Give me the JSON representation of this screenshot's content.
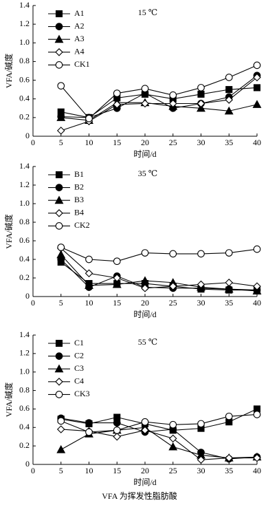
{
  "chart_data": [
    {
      "type": "line",
      "annotation": "15 ℃",
      "x_label": "时间/d",
      "y_label": "VFA/碱度",
      "x": [
        5,
        10,
        15,
        20,
        25,
        30,
        35,
        40
      ],
      "xlim": [
        0,
        40
      ],
      "xticks": [
        0,
        5,
        10,
        15,
        20,
        25,
        30,
        35,
        40
      ],
      "ylim": [
        0,
        1.4
      ],
      "yticks": [
        0,
        0.2,
        0.4,
        0.6,
        0.8,
        {
          "value": 1,
          "label": "1.0"
        },
        1.2,
        1.4
      ],
      "legend": "upper left",
      "series": [
        {
          "name": "A1",
          "color": "#000000",
          "marker": "square",
          "filled": true,
          "values": [
            0.26,
            0.2,
            0.41,
            0.45,
            0.4,
            0.45,
            0.5,
            0.52
          ]
        },
        {
          "name": "A2",
          "color": "#000000",
          "marker": "circle",
          "filled": true,
          "values": [
            0.21,
            0.2,
            0.3,
            0.46,
            0.3,
            0.35,
            0.42,
            0.65
          ]
        },
        {
          "name": "A3",
          "color": "#000000",
          "marker": "triangle",
          "filled": true,
          "values": [
            0.2,
            0.17,
            0.36,
            0.36,
            0.32,
            0.3,
            0.27,
            0.34
          ]
        },
        {
          "name": "A4",
          "color": "#000000",
          "marker": "diamond",
          "filled": false,
          "values": [
            0.06,
            0.16,
            0.34,
            0.35,
            0.35,
            0.35,
            0.39,
            0.63
          ]
        },
        {
          "name": "CK1",
          "color": "#000000",
          "marker": "circle",
          "filled": false,
          "values": [
            0.54,
            0.19,
            0.46,
            0.51,
            0.44,
            0.52,
            0.63,
            0.76
          ]
        }
      ]
    },
    {
      "type": "line",
      "annotation": "35 ℃",
      "x_label": "时间/d",
      "y_label": "VFA/碱度",
      "x": [
        5,
        10,
        15,
        20,
        25,
        30,
        35,
        40
      ],
      "xlim": [
        0,
        40
      ],
      "xticks": [
        0,
        5,
        10,
        15,
        20,
        25,
        30,
        35,
        40
      ],
      "ylim": [
        0,
        1.4
      ],
      "yticks": [
        0,
        0.2,
        0.4,
        0.6,
        0.8,
        {
          "value": 1,
          "label": "1.0"
        },
        1.2,
        1.4
      ],
      "legend": "upper left",
      "series": [
        {
          "name": "B1",
          "color": "#000000",
          "marker": "square",
          "filled": true,
          "values": [
            0.37,
            0.14,
            0.14,
            0.14,
            0.11,
            0.08,
            0.07,
            0.07
          ]
        },
        {
          "name": "B2",
          "color": "#000000",
          "marker": "circle",
          "filled": true,
          "values": [
            0.4,
            0.1,
            0.22,
            0.1,
            0.09,
            0.09,
            0.08,
            0.07
          ]
        },
        {
          "name": "B3",
          "color": "#000000",
          "marker": "triangle",
          "filled": true,
          "values": [
            0.45,
            0.12,
            0.13,
            0.17,
            0.15,
            0.1,
            0.08,
            0.06
          ]
        },
        {
          "name": "B4",
          "color": "#000000",
          "marker": "diamond",
          "filled": false,
          "values": [
            0.52,
            0.25,
            0.2,
            0.09,
            0.11,
            0.13,
            0.15,
            0.11
          ]
        },
        {
          "name": "CK2",
          "color": "#000000",
          "marker": "circle",
          "filled": false,
          "values": [
            0.53,
            0.4,
            0.38,
            0.47,
            0.46,
            0.46,
            0.47,
            0.51
          ]
        }
      ]
    },
    {
      "type": "line",
      "annotation": "55 ℃",
      "x_label": "时间/d",
      "y_label": "VFA/碱度",
      "x": [
        5,
        10,
        15,
        20,
        25,
        30,
        35,
        40
      ],
      "xlim": [
        0,
        40
      ],
      "xticks": [
        0,
        5,
        10,
        15,
        20,
        25,
        30,
        35,
        40
      ],
      "ylim": [
        0,
        1.4
      ],
      "yticks": [
        0,
        0.2,
        0.4,
        0.6,
        0.8,
        {
          "value": 1,
          "label": "1.0"
        },
        1.2,
        1.4
      ],
      "legend": "upper left",
      "series": [
        {
          "name": "C1",
          "color": "#000000",
          "marker": "square",
          "filled": true,
          "values": [
            0.49,
            0.44,
            0.51,
            0.44,
            0.37,
            0.39,
            0.46,
            0.6
          ]
        },
        {
          "name": "C2",
          "color": "#000000",
          "marker": "circle",
          "filled": true,
          "values": [
            0.5,
            0.45,
            0.45,
            0.35,
            0.38,
            0.13,
            0.06,
            0.08
          ]
        },
        {
          "name": "C3",
          "color": "#000000",
          "marker": "triangle",
          "filled": true,
          "values": [
            0.16,
            0.33,
            0.37,
            0.4,
            0.19,
            0.1,
            0.07,
            0.08
          ]
        },
        {
          "name": "C4",
          "color": "#000000",
          "marker": "diamond",
          "filled": false,
          "values": [
            0.38,
            0.36,
            0.3,
            0.37,
            0.28,
            0.05,
            0.07,
            0.07
          ]
        },
        {
          "name": "CK3",
          "color": "#000000",
          "marker": "circle",
          "filled": false,
          "values": [
            0.47,
            0.35,
            0.37,
            0.46,
            0.43,
            0.44,
            0.52,
            0.54
          ]
        }
      ]
    }
  ],
  "caption": "VFA 为挥发性脂肪酸"
}
